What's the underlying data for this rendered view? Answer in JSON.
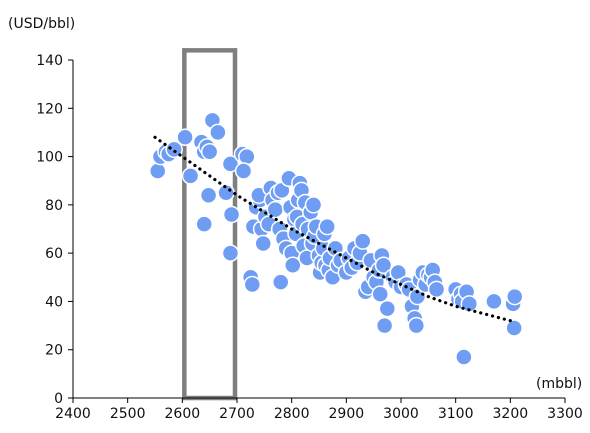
{
  "chart_data": {
    "type": "scatter",
    "ylabel": "(USD/bbl)",
    "xlabel": "(mbbl)",
    "xlim": [
      2400,
      3300
    ],
    "ylim": [
      0,
      140
    ],
    "xticks": [
      2400,
      2500,
      2600,
      2700,
      2800,
      2900,
      3000,
      3100,
      3200,
      3300
    ],
    "yticks": [
      0,
      20,
      40,
      60,
      80,
      100,
      120,
      140
    ],
    "grid": false,
    "legend": "none",
    "series": [
      {
        "marker_color": "#6f9df3",
        "points": [
          [
            2555,
            94
          ],
          [
            2560,
            100
          ],
          [
            2570,
            102
          ],
          [
            2575,
            101
          ],
          [
            2585,
            103
          ],
          [
            2605,
            108
          ],
          [
            2615,
            92
          ],
          [
            2635,
            106
          ],
          [
            2640,
            102
          ],
          [
            2645,
            104
          ],
          [
            2650,
            102
          ],
          [
            2655,
            115
          ],
          [
            2665,
            110
          ],
          [
            2640,
            72
          ],
          [
            2648,
            84
          ],
          [
            2680,
            85
          ],
          [
            2688,
            97
          ],
          [
            2690,
            76
          ],
          [
            2688,
            60
          ],
          [
            2710,
            101
          ],
          [
            2718,
            100
          ],
          [
            2712,
            94
          ],
          [
            2725,
            50
          ],
          [
            2728,
            47
          ],
          [
            2730,
            71
          ],
          [
            2735,
            79
          ],
          [
            2742,
            82
          ],
          [
            2740,
            84
          ],
          [
            2745,
            70
          ],
          [
            2748,
            64
          ],
          [
            2752,
            75
          ],
          [
            2758,
            72
          ],
          [
            2762,
            87
          ],
          [
            2765,
            82
          ],
          [
            2770,
            78
          ],
          [
            2775,
            85
          ],
          [
            2778,
            70
          ],
          [
            2780,
            48
          ],
          [
            2782,
            86
          ],
          [
            2785,
            66
          ],
          [
            2790,
            62
          ],
          [
            2795,
            91
          ],
          [
            2798,
            79
          ],
          [
            2800,
            60
          ],
          [
            2802,
            55
          ],
          [
            2805,
            74
          ],
          [
            2808,
            68
          ],
          [
            2810,
            75
          ],
          [
            2812,
            82
          ],
          [
            2815,
            89
          ],
          [
            2818,
            86
          ],
          [
            2820,
            72
          ],
          [
            2822,
            63
          ],
          [
            2825,
            81
          ],
          [
            2828,
            58
          ],
          [
            2830,
            70
          ],
          [
            2835,
            77
          ],
          [
            2838,
            64
          ],
          [
            2840,
            80
          ],
          [
            2842,
            67
          ],
          [
            2845,
            71
          ],
          [
            2850,
            59
          ],
          [
            2852,
            52
          ],
          [
            2855,
            56
          ],
          [
            2858,
            62
          ],
          [
            2860,
            68
          ],
          [
            2862,
            55
          ],
          [
            2865,
            71
          ],
          [
            2868,
            53
          ],
          [
            2870,
            58
          ],
          [
            2875,
            50
          ],
          [
            2880,
            62
          ],
          [
            2885,
            55
          ],
          [
            2890,
            57
          ],
          [
            2900,
            52
          ],
          [
            2905,
            58
          ],
          [
            2910,
            54
          ],
          [
            2915,
            62
          ],
          [
            2920,
            56
          ],
          [
            2925,
            60
          ],
          [
            2930,
            65
          ],
          [
            2935,
            44
          ],
          [
            2940,
            46
          ],
          [
            2945,
            57
          ],
          [
            2950,
            50
          ],
          [
            2955,
            48
          ],
          [
            2960,
            53
          ],
          [
            2962,
            43
          ],
          [
            2965,
            59
          ],
          [
            2968,
            55
          ],
          [
            2970,
            30
          ],
          [
            2975,
            37
          ],
          [
            2985,
            50
          ],
          [
            2990,
            48
          ],
          [
            2995,
            52
          ],
          [
            3000,
            46
          ],
          [
            3010,
            47
          ],
          [
            3015,
            45
          ],
          [
            3020,
            38
          ],
          [
            3025,
            33
          ],
          [
            3028,
            30
          ],
          [
            3030,
            42
          ],
          [
            3035,
            49
          ],
          [
            3040,
            52
          ],
          [
            3045,
            47
          ],
          [
            3050,
            51
          ],
          [
            3055,
            50
          ],
          [
            3058,
            53
          ],
          [
            3062,
            48
          ],
          [
            3065,
            45
          ],
          [
            3100,
            45
          ],
          [
            3105,
            41
          ],
          [
            3110,
            43
          ],
          [
            3112,
            40
          ],
          [
            3115,
            17
          ],
          [
            3120,
            44
          ],
          [
            3125,
            39
          ],
          [
            3170,
            40
          ],
          [
            3205,
            39
          ],
          [
            3207,
            29
          ],
          [
            3208,
            42
          ]
        ]
      }
    ],
    "trendline": {
      "style": "dotted",
      "color": "#000000",
      "points": [
        [
          2550,
          108
        ],
        [
          2600,
          100
        ],
        [
          2650,
          92
        ],
        [
          2700,
          84
        ],
        [
          2750,
          77
        ],
        [
          2800,
          70
        ],
        [
          2850,
          64
        ],
        [
          2900,
          58
        ],
        [
          2950,
          52
        ],
        [
          3000,
          47
        ],
        [
          3050,
          42
        ],
        [
          3100,
          38
        ],
        [
          3150,
          35
        ],
        [
          3200,
          32
        ]
      ]
    },
    "highlight": {
      "x_range": [
        2600,
        2700
      ],
      "y_range": [
        0,
        144
      ],
      "stroke": "#7f7f7f"
    }
  }
}
